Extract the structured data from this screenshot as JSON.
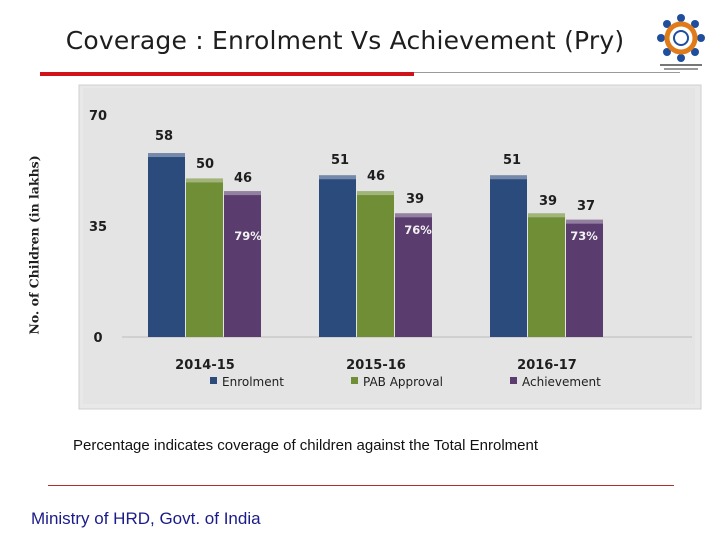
{
  "slide": {
    "title": "Coverage : Enrolment Vs Achievement (Pry)",
    "footnote": "Percentage indicates coverage of children against the Total Enrolment",
    "ministry": "Ministry of HRD, Govt. of India"
  },
  "chart_data": {
    "type": "bar",
    "ylabel": "No. of Children (in lakhs)",
    "ylim": [
      0,
      70
    ],
    "yticks": [
      0,
      35,
      70
    ],
    "categories": [
      "2014-15",
      "2015-16",
      "2016-17"
    ],
    "series": [
      {
        "name": "Enrolment",
        "values": [
          58,
          51,
          51
        ],
        "labels": [
          "58",
          "51",
          "51"
        ],
        "color": "#2b4b7d"
      },
      {
        "name": "PAB Approval",
        "values": [
          50,
          46,
          39
        ],
        "labels": [
          "50",
          "46",
          "39"
        ],
        "color": "#6f8e35"
      },
      {
        "name": "Achievement",
        "values": [
          46,
          39,
          37
        ],
        "labels": [
          "46",
          "39",
          "37"
        ],
        "color": "#5a3d6e"
      }
    ],
    "percentages": [
      "79%",
      "76%",
      "73%"
    ],
    "legend": "bottom",
    "grid": false,
    "colors": {
      "background": "#e8e8e8",
      "label": "#1e1e1e"
    }
  }
}
